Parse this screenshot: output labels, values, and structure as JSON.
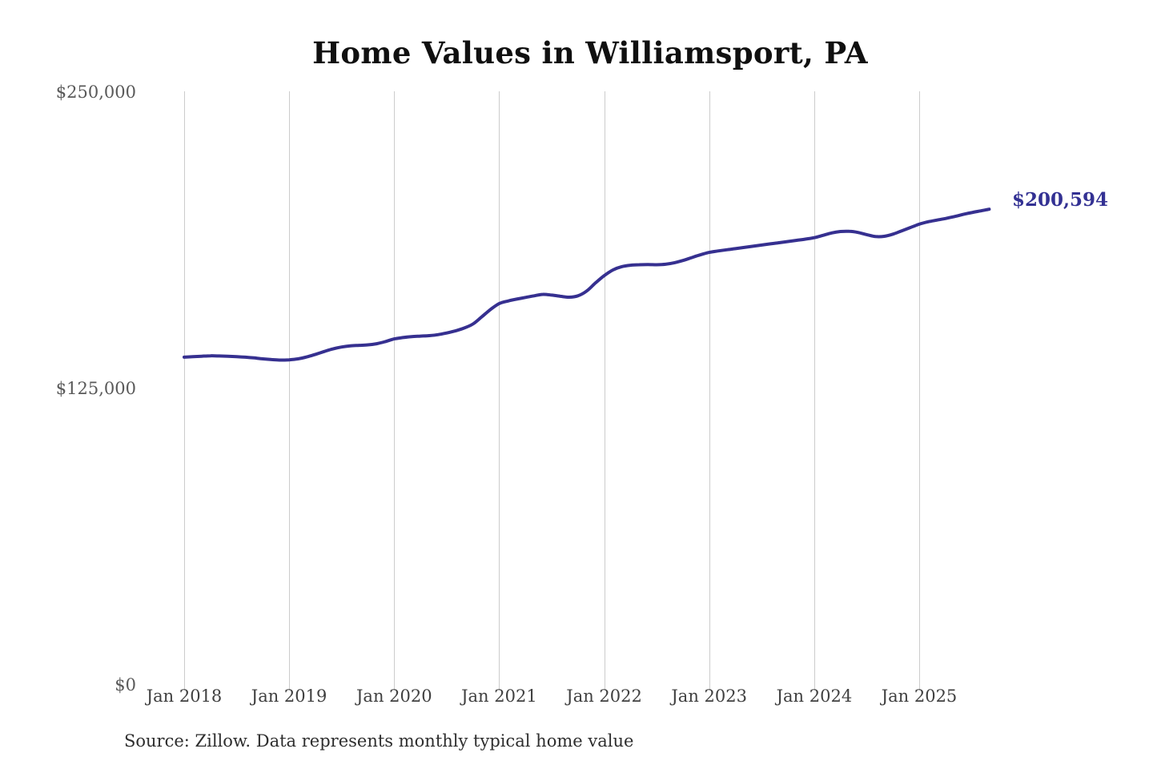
{
  "chart_data": {
    "type": "line",
    "title": "Home Values in Williamsport, PA",
    "series_name": "Monthly typical home value",
    "unit": "USD",
    "frequency": "monthly",
    "x_start": "Jan 2018",
    "x_end": "Sep 2025",
    "x_tick_labels": [
      "Jan 2018",
      "Jan 2019",
      "Jan 2020",
      "Jan 2021",
      "Jan 2022",
      "Jan 2023",
      "Jan 2024",
      "Jan 2025"
    ],
    "y_tick_labels": [
      "$250,000",
      "$125,000",
      "$0"
    ],
    "y_tick_values": [
      250000,
      125000,
      0
    ],
    "ylim": [
      0,
      250000
    ],
    "grid": "vertical-only",
    "legend": "none",
    "line_color": "#363090",
    "end_label": "$200,594",
    "end_value": 200594,
    "values": [
      138200,
      138400,
      138600,
      138800,
      138700,
      138600,
      138400,
      138200,
      137900,
      137500,
      137200,
      137000,
      137100,
      137500,
      138300,
      139400,
      140600,
      141700,
      142500,
      143000,
      143200,
      143400,
      143900,
      144800,
      145900,
      146500,
      146900,
      147100,
      147300,
      147700,
      148400,
      149300,
      150500,
      152200,
      155200,
      158300,
      160800,
      161900,
      162700,
      163400,
      164100,
      164700,
      164400,
      163900,
      163500,
      164100,
      166100,
      169500,
      172600,
      175000,
      176400,
      177000,
      177200,
      177300,
      177200,
      177400,
      178000,
      179000,
      180200,
      181400,
      182400,
      183000,
      183500,
      184000,
      184500,
      185000,
      185500,
      186000,
      186500,
      187000,
      187500,
      188000,
      188600,
      189600,
      190600,
      191200,
      191300,
      190800,
      189900,
      189100,
      189200,
      190100,
      191500,
      192900,
      194300,
      195300,
      196000,
      196700,
      197500,
      198400,
      199200,
      199900,
      200594
    ]
  },
  "footer": {
    "source": "Source: Zillow. Data represents monthly typical home value"
  }
}
